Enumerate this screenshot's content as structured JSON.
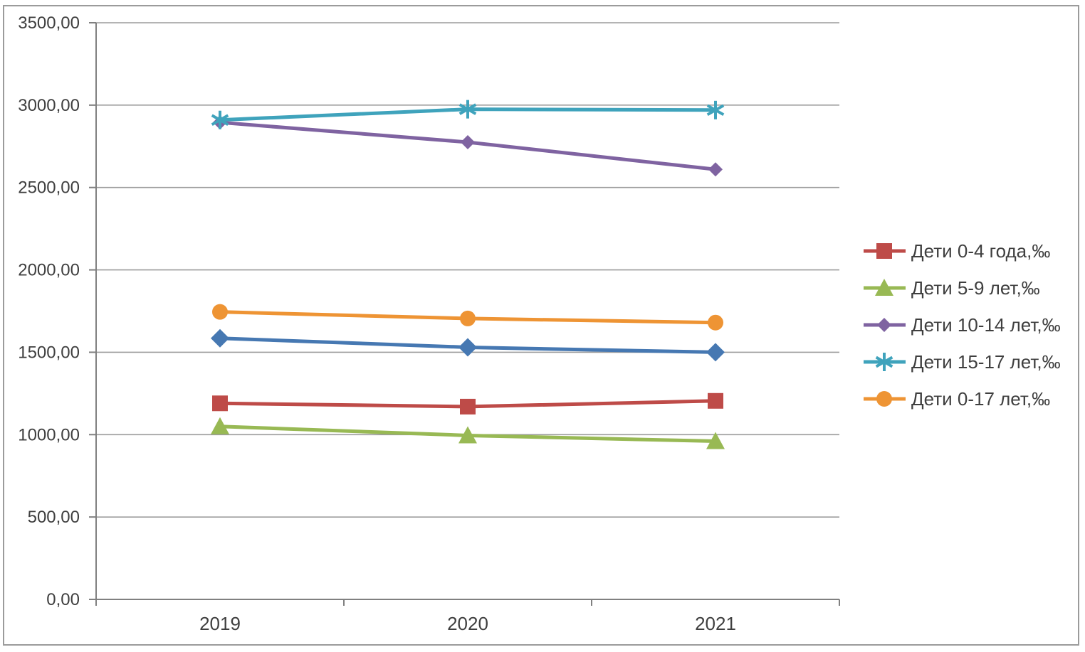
{
  "chart_data": {
    "type": "line",
    "title": "",
    "categories": [
      "2019",
      "2020",
      "2021"
    ],
    "y_axis": {
      "min": 0,
      "max": 3500,
      "step": 500,
      "tick_labels": [
        "0,00",
        "500,00",
        "1000,00",
        "1500,00",
        "2000,00",
        "2500,00",
        "3000,00",
        "3500,00"
      ]
    },
    "x_axis": {
      "tick_labels": [
        "2019",
        "2020",
        "2021"
      ]
    },
    "grid": "horizontal",
    "legend_position": "right",
    "series": [
      {
        "name": "Дети 0-4 года,‰",
        "color": "#BE4B48",
        "marker": "square",
        "marker_size": 11,
        "values": [
          1190,
          1170,
          1205
        ],
        "in_legend": true
      },
      {
        "name": "Дети 5-9 лет,‰",
        "color": "#98B954",
        "marker": "triangle",
        "marker_size": 13,
        "values": [
          1050,
          995,
          960
        ],
        "in_legend": true
      },
      {
        "name": "Дети 10-14 лет,‰",
        "color": "#7F63A1",
        "marker": "diamond",
        "marker_size": 10,
        "values": [
          2895,
          2775,
          2610
        ],
        "in_legend": true
      },
      {
        "name": "Дети 15-17 лет,‰",
        "color": "#3FA3BC",
        "marker": "star",
        "marker_size": 13,
        "values": [
          2910,
          2975,
          2970
        ],
        "in_legend": true
      },
      {
        "name": "Дети 0-17 лет,‰",
        "color": "#EE9434",
        "marker": "circle",
        "marker_size": 11,
        "values": [
          1745,
          1705,
          1680
        ],
        "in_legend": true
      },
      {
        "name": "",
        "color": "#4678B2",
        "marker": "diamond",
        "marker_size": 13,
        "values": [
          1585,
          1530,
          1500
        ],
        "in_legend": false
      }
    ],
    "style": {
      "grid_color": "#9C9C9C",
      "axis_color": "#808080",
      "text_color": "#3F3F3F",
      "border_color": "#9B9B9B",
      "background": "#FFFFFF",
      "line_width": 5
    }
  }
}
